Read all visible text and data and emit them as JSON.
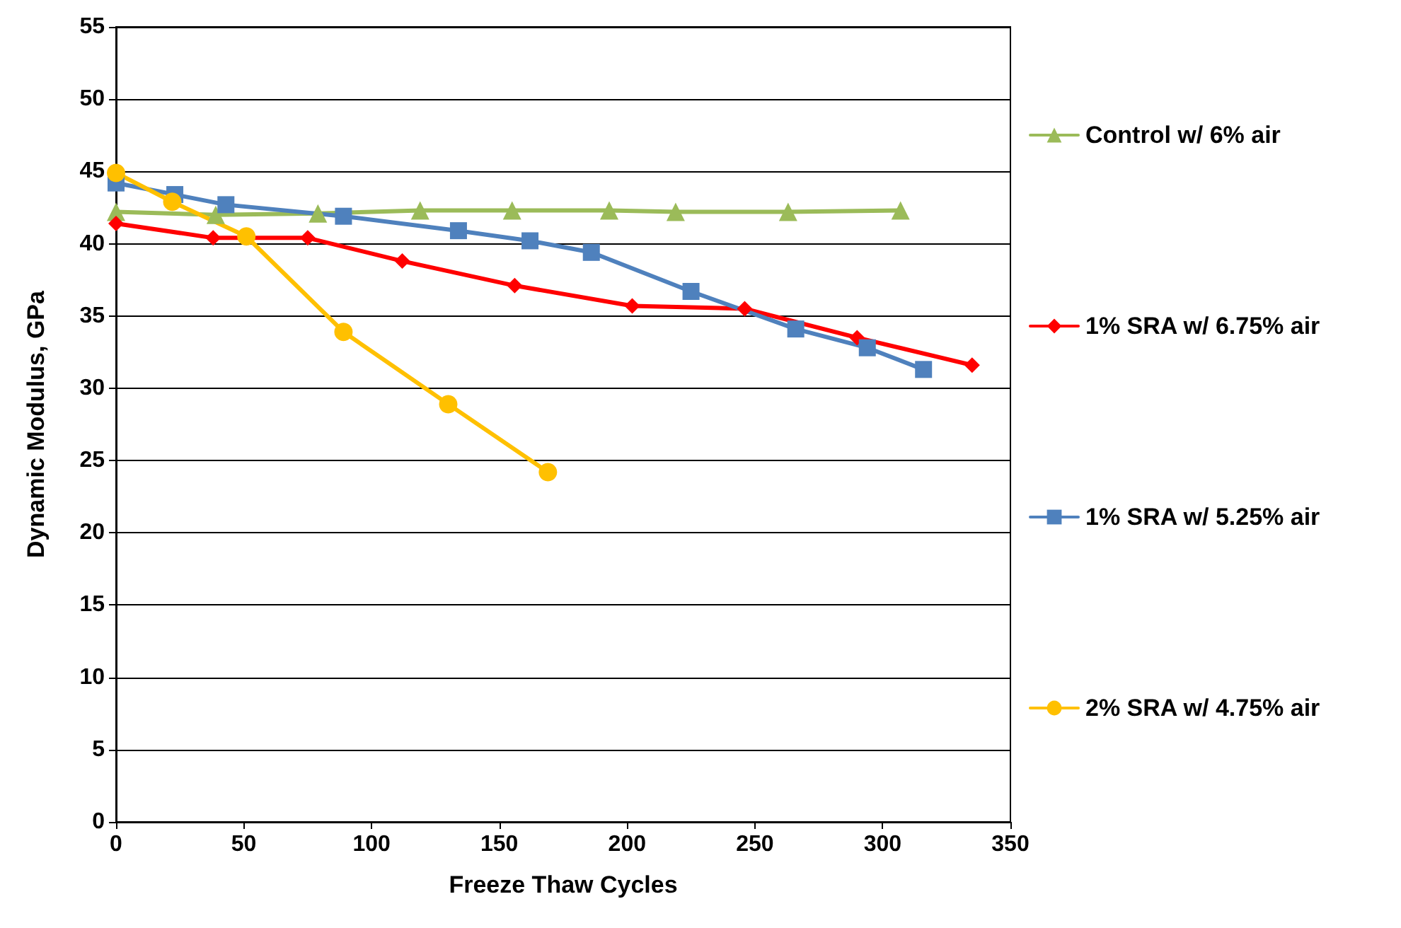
{
  "chart_data": {
    "type": "line",
    "xlabel": "Freeze Thaw Cycles",
    "ylabel": "Dynamic Modulus, GPa",
    "xlim": [
      0,
      350
    ],
    "xticks": [
      0,
      50,
      100,
      150,
      200,
      250,
      300,
      350
    ],
    "ylim": [
      0,
      55
    ],
    "yticks": [
      0,
      5,
      10,
      15,
      20,
      25,
      30,
      35,
      40,
      45,
      50,
      55
    ],
    "grid": "y",
    "legend": "right",
    "line_style": "solid",
    "series": [
      {
        "name": "Control w/ 6% air",
        "color": "#9bbb59",
        "marker": "triangle",
        "x": [
          0,
          39,
          79,
          119,
          155,
          193,
          219,
          263,
          307
        ],
        "values": [
          42.2,
          42.0,
          42.1,
          42.3,
          42.3,
          42.3,
          42.2,
          42.2,
          42.3
        ]
      },
      {
        "name": "1% SRA w/ 6.75% air",
        "color": "#ff0000",
        "marker": "diamond",
        "x": [
          0,
          38,
          75,
          112,
          156,
          202,
          246,
          290,
          335
        ],
        "values": [
          41.4,
          40.4,
          40.4,
          38.8,
          37.1,
          35.7,
          35.5,
          33.5,
          31.6
        ]
      },
      {
        "name": "1% SRA w/ 5.25% air",
        "color": "#4f81bd",
        "marker": "square",
        "x": [
          0,
          23,
          43,
          89,
          134,
          162,
          186,
          225,
          266,
          294,
          316
        ],
        "values": [
          44.2,
          43.4,
          42.7,
          41.9,
          40.9,
          40.2,
          39.4,
          36.7,
          34.1,
          32.8,
          31.3
        ]
      },
      {
        "name": "2% SRA w/ 4.75% air",
        "color": "#ffc000",
        "marker": "circle",
        "x": [
          0,
          22,
          51,
          89,
          130,
          169
        ],
        "values": [
          44.9,
          42.9,
          40.5,
          33.9,
          28.9,
          24.2
        ]
      }
    ]
  }
}
